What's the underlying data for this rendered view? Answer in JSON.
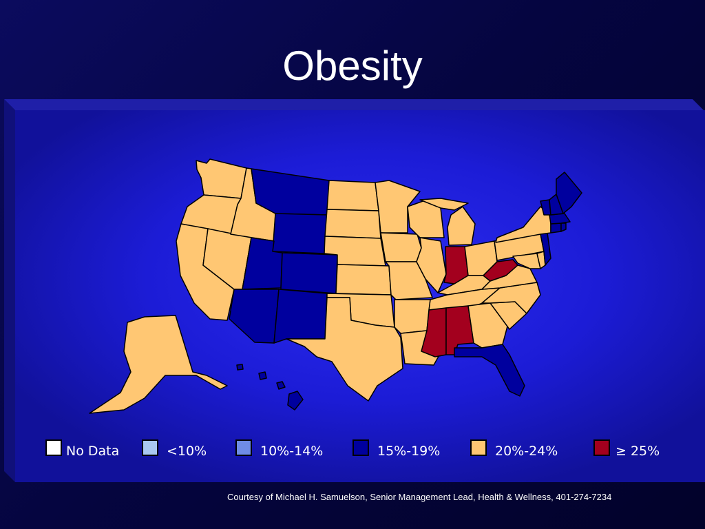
{
  "slide": {
    "title": "Obesity",
    "credit": "Courtesy of Michael H. Samuelson, Senior Management Lead, Health & Wellness,  401-274-7234"
  },
  "colors": {
    "background": "#050540",
    "panel": "#1a1ad0",
    "panel_glow": "#2a2aff",
    "outline": "#000000",
    "no_data": "#ffffff",
    "lt10": "#a9c8f0",
    "p10_14": "#6f8ce6",
    "p15_19": "#00009e",
    "p20_24": "#ffc773",
    "ge25": "#a3001e"
  },
  "legend": [
    {
      "key": "no_data",
      "label": "No Data"
    },
    {
      "key": "lt10",
      "label": "<10%"
    },
    {
      "key": "p10_14",
      "label": "10%-14%"
    },
    {
      "key": "p15_19",
      "label": "15%-19%"
    },
    {
      "key": "p20_24",
      "label": "20%-24%"
    },
    {
      "key": "ge25",
      "label": "≥ 25%"
    }
  ],
  "states": {
    "WA": "p20_24",
    "OR": "p20_24",
    "CA": "p20_24",
    "NV": "p20_24",
    "ID": "p20_24",
    "MT": "p15_19",
    "WY": "p15_19",
    "UT": "p15_19",
    "CO": "p15_19",
    "AZ": "p15_19",
    "NM": "p15_19",
    "ND": "p20_24",
    "SD": "p20_24",
    "NE": "p20_24",
    "KS": "p20_24",
    "OK": "p20_24",
    "TX": "p20_24",
    "MN": "p20_24",
    "IA": "p20_24",
    "MO": "p20_24",
    "AR": "p20_24",
    "LA": "p20_24",
    "WI": "p20_24",
    "IL": "p20_24",
    "MI": "p20_24",
    "IN": "ge25",
    "OH": "p20_24",
    "KY": "p20_24",
    "TN": "p20_24",
    "MS": "ge25",
    "AL": "ge25",
    "GA": "p20_24",
    "FL": "p15_19",
    "SC": "p20_24",
    "NC": "p20_24",
    "VA": "p20_24",
    "WV": "ge25",
    "MD": "p20_24",
    "DE": "p20_24",
    "PA": "p20_24",
    "NY": "p20_24",
    "NJ": "p15_19",
    "CT": "p15_19",
    "RI": "p15_19",
    "MA": "p15_19",
    "VT": "p15_19",
    "NH": "p15_19",
    "ME": "p15_19",
    "AK": "p20_24",
    "HI": "p15_19"
  }
}
